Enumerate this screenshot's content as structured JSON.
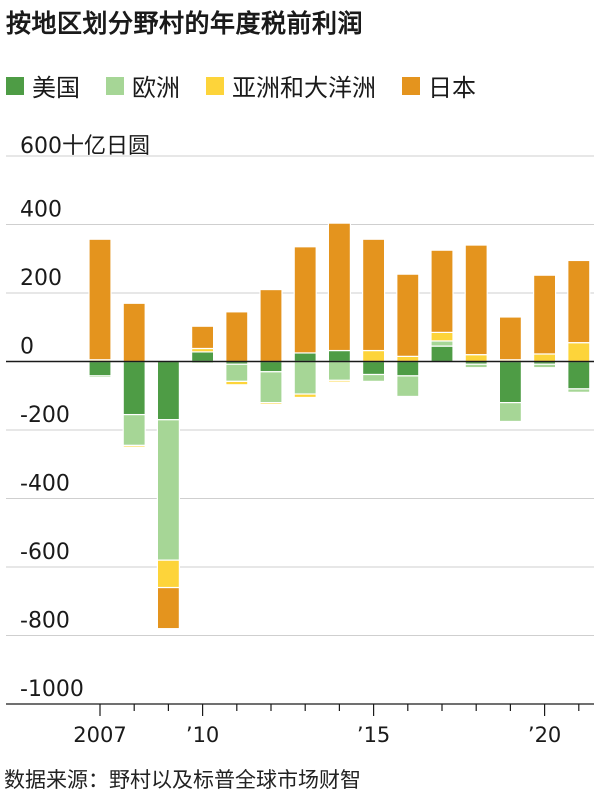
{
  "title": "按地区划分野村的年度税前利润",
  "legend": [
    {
      "name": "美国",
      "color": "#4e9c45"
    },
    {
      "name": "欧洲",
      "color": "#a6d696"
    },
    {
      "name": "亚洲和大洋洲",
      "color": "#fdd43a"
    },
    {
      "name": "日本",
      "color": "#e4941e"
    }
  ],
  "unit_label": "600十亿日圆",
  "source": "数据来源：野村以及标普全球市场财智",
  "chart_data": {
    "type": "bar",
    "stacked": true,
    "title": "按地区划分野村的年度税前利润",
    "ylabel": "十亿日圆",
    "ylim": [
      -1000,
      600
    ],
    "yticks": [
      600,
      400,
      200,
      0,
      -200,
      -400,
      -600,
      -800,
      -1000
    ],
    "ytick_labels": [
      "600十亿日圆",
      "400",
      "200",
      "0",
      "-200",
      "-400",
      "-600",
      "-800",
      "-1000"
    ],
    "categories": [
      "2007",
      "2008",
      "2009",
      "2010",
      "2011",
      "2012",
      "2013",
      "2014",
      "2015",
      "2016",
      "2017",
      "2018",
      "2019",
      "2020",
      "2021"
    ],
    "xtick_labels": [
      {
        "category": "2007",
        "label": "2007"
      },
      {
        "category": "2010",
        "label": "’10"
      },
      {
        "category": "2015",
        "label": "’15"
      },
      {
        "category": "2020",
        "label": "’20"
      }
    ],
    "series": [
      {
        "name": "美国",
        "color": "#4e9c45",
        "values": [
          -42,
          -155,
          -170,
          28,
          -8,
          -30,
          25,
          32,
          -38,
          -42,
          45,
          -8,
          -120,
          -8,
          -80
        ]
      },
      {
        "name": "欧洲",
        "color": "#a6d696",
        "values": [
          -5,
          -90,
          -410,
          -5,
          -50,
          -90,
          -95,
          -55,
          -20,
          -60,
          15,
          -10,
          -55,
          -10,
          -10
        ]
      },
      {
        "name": "亚洲和大洋洲",
        "color": "#fdd43a",
        "values": [
          5,
          -5,
          -80,
          10,
          -10,
          -5,
          -10,
          -5,
          32,
          15,
          25,
          20,
          5,
          22,
          55
        ]
      },
      {
        "name": "日本",
        "color": "#e4941e",
        "values": [
          352,
          170,
          -120,
          65,
          145,
          210,
          310,
          372,
          325,
          240,
          240,
          320,
          125,
          230,
          240
        ]
      }
    ],
    "grid": true,
    "legend_position": "top"
  }
}
